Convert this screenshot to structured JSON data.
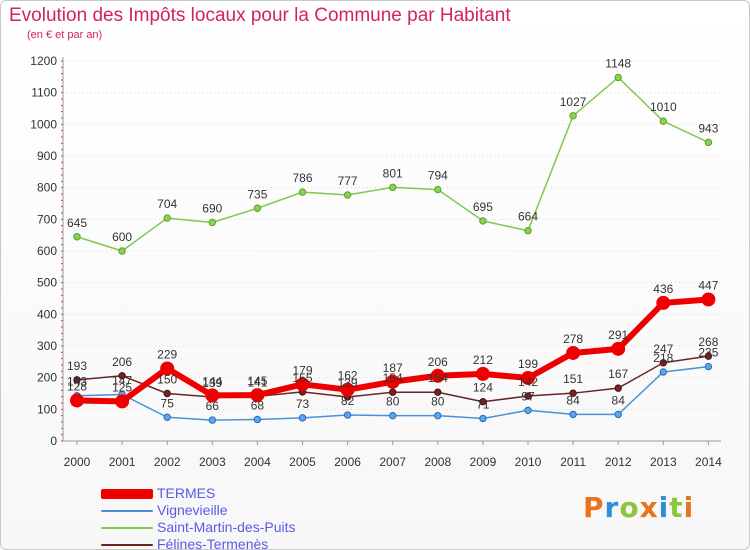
{
  "header": {
    "title": "Evolution des Impôts locaux pour la Commune par Habitant",
    "subtitle": "(en € et par an)"
  },
  "logo": {
    "text": "Proxiti",
    "colors": [
      "#e8741e",
      "#2e8fd8",
      "#8cc63f",
      "#e8741e",
      "#2e8fd8",
      "#8cc63f",
      "#e8741e"
    ]
  },
  "chart_data": {
    "type": "line",
    "title": "Evolution des Impôts locaux pour la Commune par Habitant",
    "subtitle": "(en € et par an)",
    "xlabel": "",
    "ylabel": "",
    "categories": [
      "2000",
      "2001",
      "2002",
      "2003",
      "2004",
      "2005",
      "2006",
      "2007",
      "2008",
      "2009",
      "2010",
      "2011",
      "2012",
      "2013",
      "2014"
    ],
    "ylim": [
      0,
      1200
    ],
    "yticks": [
      0,
      100,
      200,
      300,
      400,
      500,
      600,
      700,
      800,
      900,
      1000,
      1100,
      1200
    ],
    "grid": "horizontal dotted",
    "legend_position": "bottom-left",
    "series": [
      {
        "name": "Saint-Martin-des-Puits",
        "color": "#7fc84c",
        "values": [
          645,
          600,
          704,
          690,
          735,
          786,
          777,
          801,
          794,
          695,
          664,
          1027,
          1148,
          1010,
          943
        ],
        "label_values": [
          645,
          600,
          704,
          690,
          735,
          786,
          777,
          801,
          794,
          695,
          664,
          1027,
          1148,
          1010,
          943
        ]
      },
      {
        "name": "Vignevieille",
        "color": "#4a90d9",
        "values": [
          143,
          147,
          75,
          66,
          68,
          73,
          82,
          80,
          80,
          71,
          97,
          84,
          84,
          218,
          235
        ],
        "label_values": [
          143,
          147,
          75,
          66,
          68,
          73,
          82,
          80,
          80,
          71,
          97,
          84,
          84,
          218,
          235
        ]
      },
      {
        "name": "Félines-Termenès",
        "color": "#6b2424",
        "values": [
          193,
          206,
          150,
          139,
          141,
          155,
          139,
          154,
          154,
          124,
          142,
          151,
          167,
          247,
          268
        ],
        "label_values": [
          193,
          206,
          150,
          139,
          141,
          155,
          139,
          154,
          154,
          124,
          142,
          151,
          167,
          247,
          268
        ]
      },
      {
        "name": "TERMES",
        "color": "#ee0000",
        "values": [
          128,
          125,
          229,
          144,
          145,
          179,
          162,
          187,
          206,
          212,
          199,
          278,
          291,
          436,
          447
        ],
        "label_values": [
          128,
          125,
          229,
          144,
          145,
          179,
          162,
          187,
          206,
          212,
          199,
          278,
          291,
          436,
          447
        ]
      }
    ]
  }
}
